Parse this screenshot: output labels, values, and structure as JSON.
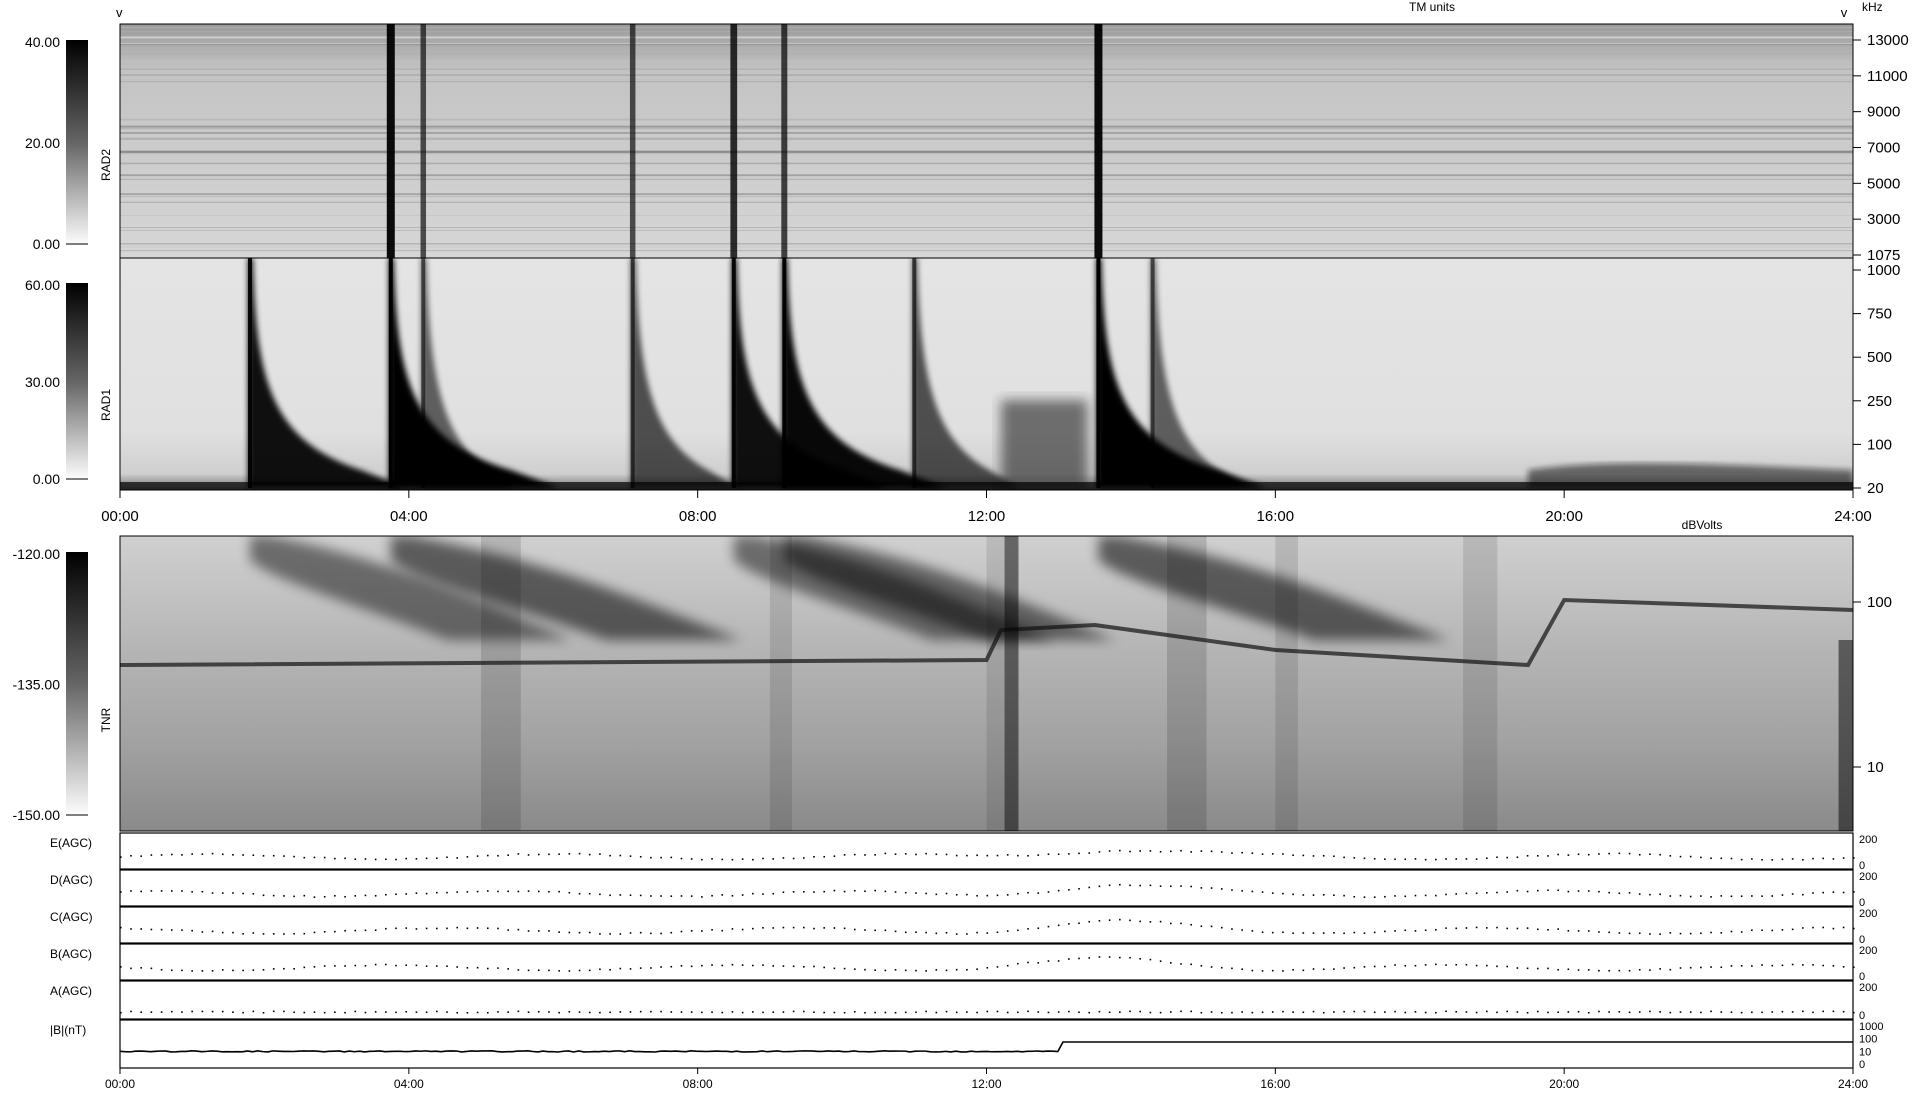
{
  "header": {
    "left_marker": "v",
    "right_marker": "v",
    "units_top": "TM units",
    "units_right": "kHz",
    "units_tnr": "dBVolts"
  },
  "colorbars": {
    "rad2": {
      "ticks": [
        "40.00",
        "20.00",
        "0.00"
      ]
    },
    "rad1": {
      "ticks": [
        "60.00",
        "30.00",
        "0.00"
      ]
    },
    "tnr": {
      "ticks": [
        "-120.00",
        "-135.00",
        "-150.00"
      ]
    }
  },
  "chart_data": [
    {
      "type": "heatmap",
      "panel": "RAD2",
      "ylabel": "RAD2",
      "yticks_right": [
        "13000",
        "11000",
        "9000",
        "7000",
        "5000",
        "3000",
        "1075"
      ],
      "colorscale": "gray",
      "color_range": [
        0,
        40
      ],
      "bursts": [
        {
          "t": 3.75,
          "intensity": 1.0
        },
        {
          "t": 4.2,
          "intensity": 0.5
        },
        {
          "t": 7.1,
          "intensity": 0.5
        },
        {
          "t": 8.5,
          "intensity": 0.75
        },
        {
          "t": 9.2,
          "intensity": 0.6
        },
        {
          "t": 13.55,
          "intensity": 1.0
        }
      ]
    },
    {
      "type": "heatmap",
      "panel": "RAD1",
      "ylabel": "RAD1",
      "yticks_right": [
        "1000",
        "750",
        "500",
        "250",
        "100",
        "20"
      ],
      "colorscale": "gray",
      "color_range": [
        0,
        60
      ],
      "bursts": [
        {
          "t": 1.8,
          "intensity": 0.9
        },
        {
          "t": 3.75,
          "intensity": 1.0
        },
        {
          "t": 4.2,
          "intensity": 0.4
        },
        {
          "t": 7.1,
          "intensity": 0.5
        },
        {
          "t": 8.5,
          "intensity": 0.9
        },
        {
          "t": 9.2,
          "intensity": 0.95
        },
        {
          "t": 11.0,
          "intensity": 0.5
        },
        {
          "t": 13.55,
          "intensity": 1.0
        },
        {
          "t": 14.3,
          "intensity": 0.4
        }
      ]
    },
    {
      "type": "heatmap",
      "panel": "TNR",
      "ylabel": "TNR",
      "yticks_right": [
        "100",
        "10"
      ],
      "colorscale": "gray",
      "color_range": [
        -150,
        -120
      ]
    },
    {
      "type": "line",
      "panels": [
        {
          "label": "E(AGC)",
          "ticks": [
            "200",
            "0"
          ]
        },
        {
          "label": "D(AGC)",
          "ticks": [
            "200",
            "0"
          ]
        },
        {
          "label": "C(AGC)",
          "ticks": [
            "200",
            "0"
          ]
        },
        {
          "label": "B(AGC)",
          "ticks": [
            "200",
            "0"
          ]
        },
        {
          "label": "A(AGC)",
          "ticks": [
            "200",
            "0"
          ]
        },
        {
          "label": "|B|(nT)",
          "ticks": [
            "1000",
            "100",
            "10",
            "0"
          ]
        }
      ]
    }
  ],
  "time_axis": {
    "ticks_large": [
      "00:00",
      "04:00",
      "08:00",
      "12:00",
      "16:00",
      "20:00",
      "24:00"
    ],
    "ticks_small": [
      "00:00",
      "04:00",
      "08:00",
      "12:00",
      "16:00",
      "20:00",
      "24:00"
    ],
    "range_hours": [
      0,
      24
    ]
  }
}
